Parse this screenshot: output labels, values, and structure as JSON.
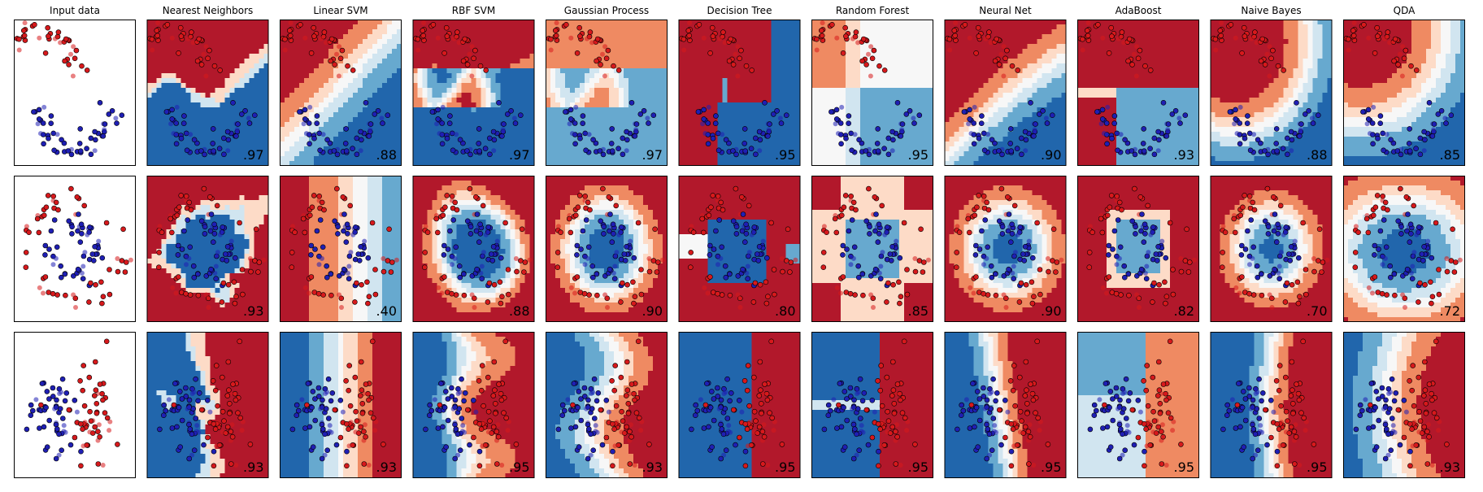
{
  "chart_data": {
    "type": "scatter",
    "description_level": "grid",
    "columns": [
      "Input data",
      "Nearest Neighbors",
      "Linear SVM",
      "RBF SVM",
      "Gaussian Process",
      "Decision Tree",
      "Random Forest",
      "Neural Net",
      "AdaBoost",
      "Naive Bayes",
      "QDA"
    ],
    "rows": [
      {
        "dataset": "moons",
        "scores": [
          null,
          ".97",
          ".88",
          ".97",
          ".97",
          ".95",
          ".95",
          ".90",
          ".93",
          ".88",
          ".85"
        ]
      },
      {
        "dataset": "circles",
        "scores": [
          null,
          ".93",
          ".40",
          ".88",
          ".90",
          ".80",
          ".85",
          ".90",
          ".82",
          ".70",
          ".72"
        ]
      },
      {
        "dataset": "linearly_separable",
        "scores": [
          null,
          ".93",
          ".93",
          ".95",
          ".93",
          ".95",
          ".95",
          ".95",
          ".95",
          ".95",
          ".93"
        ]
      }
    ],
    "classes": [
      {
        "color": "#d7191c"
      },
      {
        "color": "#1f1fb4"
      }
    ],
    "colormap": [
      "#b2182b",
      "#ef8a62",
      "#fddbc7",
      "#f7f7f7",
      "#d1e5f0",
      "#67a9cf",
      "#2166ac"
    ],
    "grid": false
  }
}
